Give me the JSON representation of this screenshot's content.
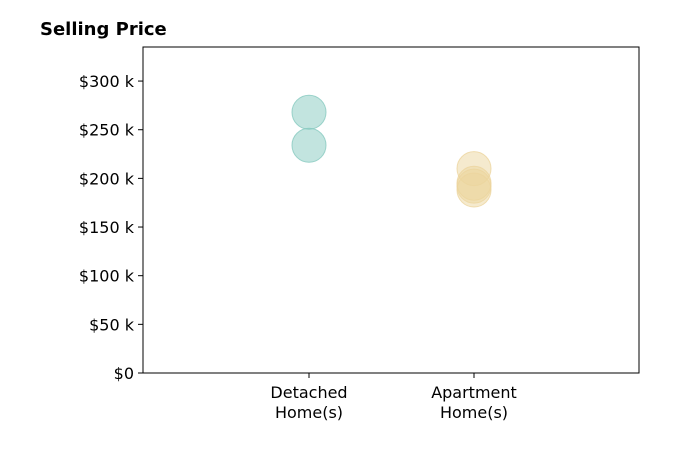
{
  "chart_data": {
    "type": "scatter",
    "title": "Selling Price",
    "xlabel": "",
    "ylabel": "",
    "ylim": [
      0,
      335000
    ],
    "y_ticks": [
      0,
      50000,
      100000,
      150000,
      200000,
      250000,
      300000
    ],
    "y_tick_labels": [
      "$0",
      "$50 k",
      "$100 k",
      "$150 k",
      "$200 k",
      "$250 k",
      "$300 k"
    ],
    "categories": [
      [
        "Detached",
        "Home(s)"
      ],
      [
        "Apartment",
        "Home(s)"
      ]
    ],
    "grid": false,
    "series": [
      {
        "category_index": 0,
        "color": "#86c9bf",
        "values": [
          268000,
          234000
        ]
      },
      {
        "category_index": 1,
        "color": "#ecd59e",
        "values": [
          210000,
          195000,
          192000,
          188000
        ]
      }
    ]
  }
}
